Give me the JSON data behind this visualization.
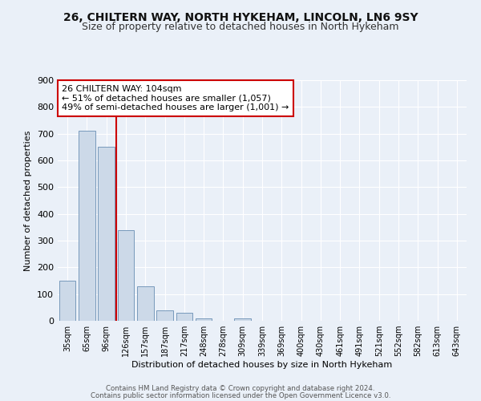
{
  "title1": "26, CHILTERN WAY, NORTH HYKEHAM, LINCOLN, LN6 9SY",
  "title2": "Size of property relative to detached houses in North Hykeham",
  "xlabel": "Distribution of detached houses by size in North Hykeham",
  "ylabel": "Number of detached properties",
  "categories": [
    "35sqm",
    "65sqm",
    "96sqm",
    "126sqm",
    "157sqm",
    "187sqm",
    "217sqm",
    "248sqm",
    "278sqm",
    "309sqm",
    "339sqm",
    "369sqm",
    "400sqm",
    "430sqm",
    "461sqm",
    "491sqm",
    "521sqm",
    "552sqm",
    "582sqm",
    "613sqm",
    "643sqm"
  ],
  "values": [
    150,
    710,
    650,
    340,
    130,
    40,
    30,
    10,
    0,
    8,
    0,
    0,
    0,
    0,
    0,
    0,
    0,
    0,
    0,
    0,
    0
  ],
  "bar_color": "#ccd9e8",
  "bar_edge_color": "#7799bb",
  "vline_x_index": 2.5,
  "vline_color": "#cc0000",
  "annotation_line1": "26 CHILTERN WAY: 104sqm",
  "annotation_line2": "← 51% of detached houses are smaller (1,057)",
  "annotation_line3": "49% of semi-detached houses are larger (1,001) →",
  "annotation_box_color": "#ffffff",
  "annotation_box_edge": "#cc0000",
  "ylim": [
    0,
    900
  ],
  "yticks": [
    0,
    100,
    200,
    300,
    400,
    500,
    600,
    700,
    800,
    900
  ],
  "footer1": "Contains HM Land Registry data © Crown copyright and database right 2024.",
  "footer2": "Contains public sector information licensed under the Open Government Licence v3.0.",
  "bg_color": "#eaf0f8",
  "plot_bg_color": "#eaf0f8",
  "grid_color": "#ffffff",
  "title1_fontsize": 10,
  "title2_fontsize": 9,
  "xlabel_fontsize": 8,
  "ylabel_fontsize": 8,
  "bar_width": 0.85
}
